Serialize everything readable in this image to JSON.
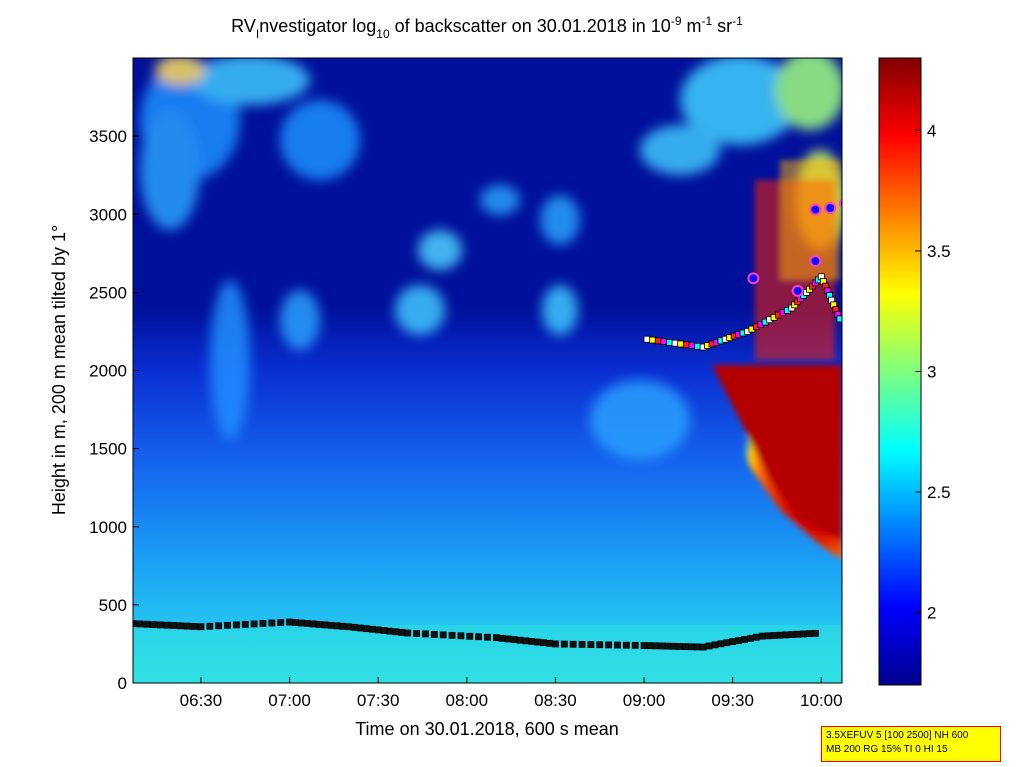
{
  "chart_data": {
    "type": "heatmap",
    "title": {
      "prefix": "RV",
      "prefix_sub": "I",
      "part1": "nvestigator log",
      "sub1": "10",
      "part2": " of backscatter on 30.01.2018 in 10",
      "sup1": "-9",
      "part3": " m",
      "sup2": "-1",
      "part4": " sr",
      "sup3": "-1"
    },
    "xlabel": "Time on 30.01.2018, 600 s mean",
    "ylabel": "Height in m, 200 m mean tilted by 1°",
    "x_ticks": [
      "06:30",
      "07:00",
      "07:30",
      "08:00",
      "08:30",
      "09:00",
      "09:30",
      "10:00"
    ],
    "x_tick_minutes": [
      390,
      420,
      450,
      480,
      510,
      540,
      570,
      600
    ],
    "xlim_minutes": [
      367,
      607
    ],
    "y_ticks": [
      0,
      500,
      1000,
      1500,
      2000,
      2500,
      3000,
      3500
    ],
    "ylim": [
      0,
      4000
    ],
    "colorbar": {
      "ticks": [
        "2",
        "2.5",
        "3",
        "3.5",
        "4"
      ],
      "tick_values": [
        2,
        2.5,
        3,
        3.5,
        4
      ],
      "range": [
        1.7,
        4.3
      ],
      "colormap": "jet"
    },
    "series": [
      {
        "name": "lowest layer",
        "x": [
          367,
          390,
          420,
          440,
          460,
          490,
          510,
          540,
          560,
          580,
          600
        ],
        "y": [
          380,
          360,
          390,
          360,
          320,
          290,
          250,
          240,
          230,
          300,
          320
        ]
      },
      {
        "name": "upper layer",
        "x": [
          541,
          560,
          575,
          590,
          600,
          607
        ],
        "y": [
          2200,
          2150,
          2250,
          2400,
          2600,
          2300
        ]
      }
    ],
    "highlight_points": [
      {
        "x": 598,
        "y": 3030
      },
      {
        "x": 603,
        "y": 3040
      },
      {
        "x": 608,
        "y": 3070
      },
      {
        "x": 577,
        "y": 2590
      },
      {
        "x": 598,
        "y": 2700
      },
      {
        "x": 592,
        "y": 2510
      }
    ]
  },
  "info": {
    "line1": "3.5XEFUV 5 [100 2500] NH 600",
    "line2": "MB 200 RG 15% TI 0 HI 15"
  },
  "colors": {
    "background_low": "#00008f",
    "background_mid": "#00b5ff",
    "background_high": "#800000",
    "info_bg": "#ffff00",
    "info_border": "#ff0000"
  }
}
